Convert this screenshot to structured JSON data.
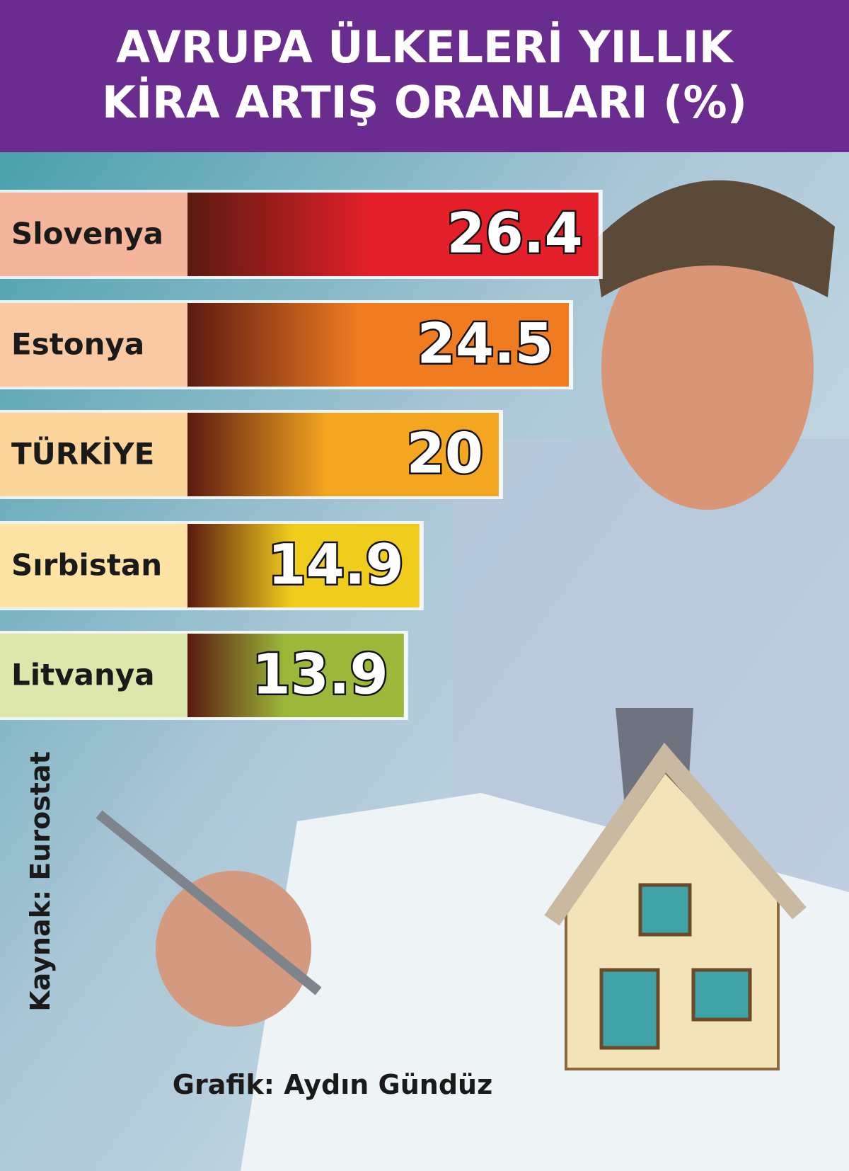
{
  "chart_data": {
    "type": "bar",
    "orientation": "horizontal",
    "title": "AVRUPA ÜLKELERİ YILLIK\nKİRA ARTIŞ ORANLARI (%)",
    "categories": [
      "Slovenya",
      "Estonya",
      "TÜRKİYE",
      "Sırbistan",
      "Litvanya"
    ],
    "values": [
      26.4,
      24.5,
      20,
      14.9,
      13.9
    ],
    "colors": [
      "#e3202a",
      "#f07c22",
      "#f5a620",
      "#f0cd1c",
      "#9bb83a"
    ],
    "label_colors": [
      "#f4b59c",
      "#f8c9a2",
      "#fbd59b",
      "#fde4a4",
      "#dde6ab"
    ],
    "source": "Kaynak: Eurostat",
    "credit": "Grafik: Aydın Gündüz"
  }
}
